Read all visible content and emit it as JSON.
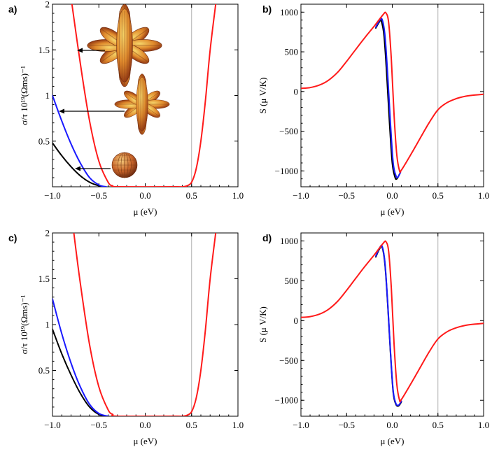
{
  "colors": {
    "black": "#000000",
    "blue": "#1a1aff",
    "red": "#ff1a1a",
    "refline": "#b0b0b0"
  },
  "chart_data": [
    {
      "panel_label": "a)",
      "type": "line",
      "xlabel": "μ (eV)",
      "ylabel": "σ/τ 10¹⁹(Ωms)⁻¹",
      "xlim": [
        -1.0,
        1.0
      ],
      "ylim": [
        0,
        2
      ],
      "xticks": [
        "−1.0",
        "−0.5",
        "0.0",
        "0.5",
        "1.0"
      ],
      "yticks": [
        "0.5",
        "1",
        "1.5",
        "2"
      ],
      "reference_x": 0.5,
      "series": [
        {
          "name": "black",
          "x": [
            -1.0,
            -0.9,
            -0.8,
            -0.7,
            -0.6,
            -0.5,
            -0.45
          ],
          "y": [
            0.48,
            0.34,
            0.22,
            0.12,
            0.05,
            0.01,
            0.0
          ]
        },
        {
          "name": "blue",
          "x": [
            -1.0,
            -0.9,
            -0.8,
            -0.7,
            -0.6,
            -0.5,
            -0.42
          ],
          "y": [
            1.0,
            0.72,
            0.47,
            0.26,
            0.1,
            0.02,
            0.0
          ]
        },
        {
          "name": "red",
          "x": [
            -0.79,
            -0.7,
            -0.6,
            -0.5,
            -0.4,
            -0.35,
            -0.3,
            0.3,
            0.4,
            0.45,
            0.5,
            0.55,
            0.6,
            0.65,
            0.7,
            0.76
          ],
          "y": [
            2.0,
            1.35,
            0.72,
            0.28,
            0.05,
            0.01,
            0.0,
            0.0,
            0.0,
            0.01,
            0.05,
            0.2,
            0.5,
            0.95,
            1.5,
            2.0
          ]
        }
      ],
      "annotations": [
        "petal-shape Fermi surface (8 lobes)",
        "petal-shape Fermi surface (small)",
        "spherical Fermi surface"
      ]
    },
    {
      "panel_label": "b)",
      "type": "line",
      "xlabel": "μ (eV)",
      "ylabel": "S (μ V/K)",
      "xlim": [
        -1.0,
        1.0
      ],
      "ylim": [
        -1200,
        1100
      ],
      "xticks": [
        "−1.0",
        "−0.5",
        "0.0",
        "0.5",
        "1.0"
      ],
      "yticks": [
        "−1000",
        "−500",
        "0",
        "500",
        "1000"
      ],
      "reference_x": 0.5,
      "series": [
        {
          "name": "black",
          "x": [
            -0.18,
            -0.14,
            -0.12,
            -0.09,
            -0.06,
            -0.03,
            0.0,
            0.03,
            0.05,
            0.08
          ],
          "y": [
            800,
            880,
            890,
            700,
            200,
            -400,
            -900,
            -1080,
            -1100,
            -1040
          ]
        },
        {
          "name": "blue",
          "x": [
            -0.18,
            -0.14,
            -0.11,
            -0.08,
            -0.05,
            -0.02,
            0.01,
            0.04,
            0.06,
            0.09
          ],
          "y": [
            810,
            895,
            905,
            700,
            200,
            -400,
            -900,
            -1060,
            -1080,
            -1020
          ]
        },
        {
          "name": "red",
          "x": [
            -1.0,
            -0.9,
            -0.8,
            -0.7,
            -0.6,
            -0.5,
            -0.4,
            -0.3,
            -0.2,
            -0.1,
            -0.07,
            -0.04,
            -0.01,
            0.02,
            0.05,
            0.08,
            0.1,
            0.2,
            0.3,
            0.4,
            0.5,
            0.6,
            0.7,
            0.8,
            0.9,
            1.0
          ],
          "y": [
            40,
            50,
            80,
            140,
            240,
            380,
            530,
            680,
            820,
            970,
            990,
            870,
            400,
            -300,
            -800,
            -1000,
            -990,
            -800,
            -600,
            -400,
            -230,
            -140,
            -90,
            -60,
            -45,
            -35
          ]
        }
      ]
    },
    {
      "panel_label": "c)",
      "type": "line",
      "xlabel": "μ (eV)",
      "ylabel": "σ/τ 10¹⁹(Ωms)⁻¹",
      "xlim": [
        -1.0,
        1.0
      ],
      "ylim": [
        0,
        2
      ],
      "xticks": [
        "−1.0",
        "−0.5",
        "0.0",
        "0.5",
        "1.0"
      ],
      "yticks": [
        "0.5",
        "1",
        "1.5",
        "2"
      ],
      "reference_x": 0.5,
      "series": [
        {
          "name": "black",
          "x": [
            -1.0,
            -0.9,
            -0.8,
            -0.7,
            -0.6,
            -0.5,
            -0.4
          ],
          "y": [
            0.95,
            0.68,
            0.45,
            0.25,
            0.1,
            0.02,
            0.0
          ]
        },
        {
          "name": "blue",
          "x": [
            -1.0,
            -0.9,
            -0.8,
            -0.7,
            -0.6,
            -0.5,
            -0.4
          ],
          "y": [
            1.28,
            0.9,
            0.58,
            0.32,
            0.13,
            0.03,
            0.0
          ]
        },
        {
          "name": "red",
          "x": [
            -0.77,
            -0.7,
            -0.6,
            -0.5,
            -0.4,
            -0.35,
            -0.3,
            0.3,
            0.4,
            0.45,
            0.5,
            0.55,
            0.6,
            0.65,
            0.7,
            0.76
          ],
          "y": [
            2.0,
            1.45,
            0.78,
            0.32,
            0.07,
            0.02,
            0.0,
            0.0,
            0.0,
            0.01,
            0.05,
            0.2,
            0.5,
            0.95,
            1.5,
            2.0
          ]
        }
      ]
    },
    {
      "panel_label": "d)",
      "type": "line",
      "xlabel": "μ (eV)",
      "ylabel": "S (μ V/K)",
      "xlim": [
        -1.0,
        1.0
      ],
      "ylim": [
        -1200,
        1100
      ],
      "xticks": [
        "−1.0",
        "−0.5",
        "0.0",
        "0.5",
        "1.0"
      ],
      "yticks": [
        "−1000",
        "−500",
        "0",
        "500",
        "1000"
      ],
      "reference_x": 0.5,
      "series": [
        {
          "name": "black",
          "x": [
            -0.18,
            -0.14,
            -0.11,
            -0.08,
            -0.05,
            -0.02,
            0.01,
            0.04,
            0.07,
            0.1
          ],
          "y": [
            800,
            900,
            920,
            700,
            200,
            -400,
            -900,
            -1050,
            -1070,
            -1020
          ]
        },
        {
          "name": "blue",
          "x": [
            -0.18,
            -0.14,
            -0.11,
            -0.08,
            -0.05,
            -0.02,
            0.01,
            0.04,
            0.07,
            0.1
          ],
          "y": [
            810,
            910,
            930,
            720,
            220,
            -380,
            -880,
            -1040,
            -1060,
            -1010
          ]
        },
        {
          "name": "red",
          "x": [
            -1.0,
            -0.9,
            -0.8,
            -0.7,
            -0.6,
            -0.5,
            -0.4,
            -0.3,
            -0.2,
            -0.1,
            -0.07,
            -0.04,
            -0.01,
            0.02,
            0.05,
            0.08,
            0.1,
            0.2,
            0.3,
            0.4,
            0.5,
            0.6,
            0.7,
            0.8,
            0.9,
            1.0
          ],
          "y": [
            40,
            50,
            80,
            140,
            240,
            380,
            530,
            680,
            820,
            970,
            990,
            870,
            400,
            -300,
            -800,
            -1000,
            -990,
            -800,
            -600,
            -400,
            -230,
            -140,
            -90,
            -60,
            -45,
            -35
          ]
        }
      ]
    }
  ]
}
